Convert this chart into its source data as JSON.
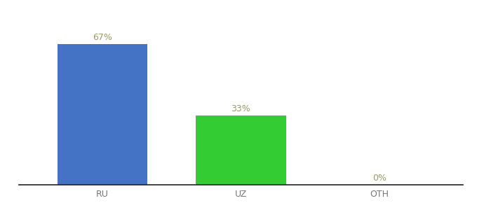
{
  "categories": [
    "RU",
    "UZ",
    "OTH"
  ],
  "values": [
    67,
    33,
    0
  ],
  "bar_colors": [
    "#4472c4",
    "#33cc33",
    "#4472c4"
  ],
  "labels": [
    "67%",
    "33%",
    "0%"
  ],
  "background_color": "#ffffff",
  "label_color": "#999966",
  "bar_width": 0.65,
  "ylim": [
    0,
    80
  ],
  "xlabel_fontsize": 9,
  "label_fontsize": 9,
  "figsize": [
    6.8,
    3.0
  ],
  "dpi": 100
}
